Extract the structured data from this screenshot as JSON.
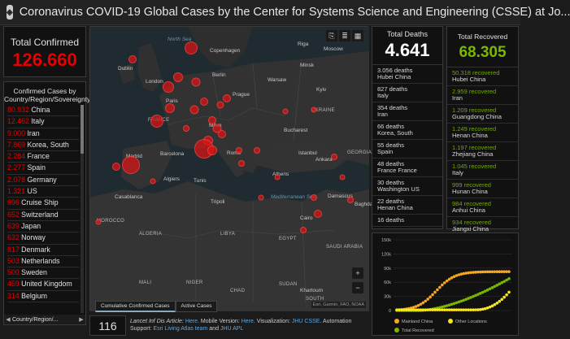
{
  "header": {
    "title": "Coronavirus COVID-19 Global Cases by the Center for Systems Science and Engineering (CSSE) at Jo..."
  },
  "total_confirmed": {
    "label": "Total Confirmed",
    "value": "126.660"
  },
  "confirmed_list": {
    "title_line1": "Confirmed Cases by",
    "title_line2": "Country/Region/Sovereignty",
    "rows": [
      {
        "num": "80.932",
        "name": "China"
      },
      {
        "num": "12.462",
        "name": "Italy"
      },
      {
        "num": "9.000",
        "name": "Iran"
      },
      {
        "num": "7.869",
        "name": "Korea, South"
      },
      {
        "num": "2.284",
        "name": "France"
      },
      {
        "num": "2.277",
        "name": "Spain"
      },
      {
        "num": "2.078",
        "name": "Germany"
      },
      {
        "num": "1.321",
        "name": "US"
      },
      {
        "num": "696",
        "name": "Cruise Ship"
      },
      {
        "num": "652",
        "name": "Switzerland"
      },
      {
        "num": "639",
        "name": "Japan"
      },
      {
        "num": "632",
        "name": "Norway"
      },
      {
        "num": "617",
        "name": "Denmark"
      },
      {
        "num": "503",
        "name": "Netherlands"
      },
      {
        "num": "500",
        "name": "Sweden"
      },
      {
        "num": "459",
        "name": "United Kingdom"
      },
      {
        "num": "314",
        "name": "Belgium"
      }
    ],
    "tab_label": "Country/Region/..."
  },
  "bottom_count": "116",
  "map": {
    "tabs": [
      "Cumulative Confirmed Cases",
      "Active Cases"
    ],
    "attribution": "Esri, Garmin, FAO, NOAA",
    "labels": [
      {
        "t": "North Sea",
        "c": "sea"
      },
      {
        "t": "Copenhagen",
        "c": ""
      },
      {
        "t": "Riga",
        "c": ""
      },
      {
        "t": "Moscow",
        "c": ""
      },
      {
        "t": "Dublin",
        "c": ""
      },
      {
        "t": "Minsk",
        "c": ""
      },
      {
        "t": "London",
        "c": ""
      },
      {
        "t": "Berlin",
        "c": ""
      },
      {
        "t": "Warsaw",
        "c": ""
      },
      {
        "t": "Paris",
        "c": ""
      },
      {
        "t": "Kyiv",
        "c": ""
      },
      {
        "t": "Prague",
        "c": ""
      },
      {
        "t": "UKRAINE",
        "c": "cty"
      },
      {
        "t": "FRANCE",
        "c": "cty"
      },
      {
        "t": "Milan",
        "c": ""
      },
      {
        "t": "Bucharest",
        "c": ""
      },
      {
        "t": "Barcelona",
        "c": ""
      },
      {
        "t": "Madrid",
        "c": ""
      },
      {
        "t": "Rome",
        "c": ""
      },
      {
        "t": "Istanbul",
        "c": ""
      },
      {
        "t": "Ankara",
        "c": ""
      },
      {
        "t": "GEORGIA",
        "c": "cty"
      },
      {
        "t": "Athens",
        "c": ""
      },
      {
        "t": "Algiers",
        "c": ""
      },
      {
        "t": "Tunis",
        "c": ""
      },
      {
        "t": "Casablanca",
        "c": ""
      },
      {
        "t": "Tripoli",
        "c": ""
      },
      {
        "t": "Mediterranean Sea",
        "c": "sea"
      },
      {
        "t": "Damascus",
        "c": ""
      },
      {
        "t": "Baghdad",
        "c": ""
      },
      {
        "t": "MOROCCO",
        "c": "cty"
      },
      {
        "t": "ALGERIA",
        "c": "cty"
      },
      {
        "t": "LIBYA",
        "c": "cty"
      },
      {
        "t": "EGYPT",
        "c": "cty"
      },
      {
        "t": "Cairo",
        "c": ""
      },
      {
        "t": "SAUDI ARABIA",
        "c": "cty"
      },
      {
        "t": "MALI",
        "c": "cty"
      },
      {
        "t": "NIGER",
        "c": "cty"
      },
      {
        "t": "CHAD",
        "c": "cty"
      },
      {
        "t": "SUDAN",
        "c": "cty"
      },
      {
        "t": "Khartoum",
        "c": ""
      },
      {
        "t": "SOUTH",
        "c": "cty"
      }
    ]
  },
  "deaths": {
    "label": "Total Deaths",
    "value": "4.641",
    "rows": [
      {
        "n": "3.056 deaths",
        "p": "Hubei China"
      },
      {
        "n": "827 deaths",
        "p": "Italy"
      },
      {
        "n": "354 deaths",
        "p": "Iran"
      },
      {
        "n": "66 deaths",
        "p": "Korea, South"
      },
      {
        "n": "55 deaths",
        "p": "Spain"
      },
      {
        "n": "48 deaths",
        "p": "France France"
      },
      {
        "n": "30 deaths",
        "p": "Washington US"
      },
      {
        "n": "22 deaths",
        "p": "Henan China"
      },
      {
        "n": "16 deaths",
        "p": ""
      }
    ]
  },
  "recovered": {
    "label": "Total Recovered",
    "value": "68.305",
    "rows": [
      {
        "n": "50.318 recovered",
        "p": "Hubei China"
      },
      {
        "n": "2.959 recovered",
        "p": "Iran"
      },
      {
        "n": "1.209 recovered",
        "p": "Guangdong China"
      },
      {
        "n": "1.249 recovered",
        "p": "Henan China"
      },
      {
        "n": "1.197 recovered",
        "p": "Zhejiang China"
      },
      {
        "n": "1.045 recovered",
        "p": "Italy"
      },
      {
        "n": "999 recovered",
        "p": "Hunan China"
      },
      {
        "n": "984 recovered",
        "p": "Anhui China"
      },
      {
        "n": "934 recovered",
        "p": "Jiangxi China"
      }
    ]
  },
  "chart": {
    "yticks": [
      "150k",
      "120k",
      "90k",
      "60k",
      "30k",
      "0"
    ],
    "legend": [
      "Mainland China",
      "Other Locations",
      "Total Recovered"
    ],
    "colors": {
      "mainland": "#f5a623",
      "other": "#f8e71c",
      "recovered": "#7ab800"
    }
  },
  "footer": {
    "line1_a": "Lancet Inf Dis Article: ",
    "line1_b": "Here",
    "line1_c": ". Mobile Version: ",
    "line1_d": "Here",
    "line1_e": ". Visualization: ",
    "line1_f": "JHU CSSE",
    "line1_g": ". Automation",
    "line2_a": "Support: ",
    "line2_b": "Esri Living Atlas team",
    "line2_c": " and ",
    "line2_d": "JHU APL"
  }
}
